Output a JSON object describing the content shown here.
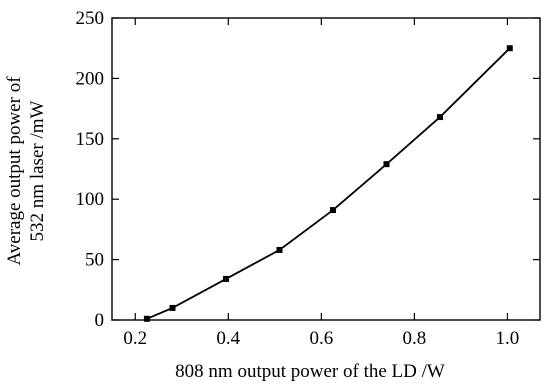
{
  "chart_data": {
    "type": "line",
    "title": "",
    "xlabel": "808 nm output power of the LD /W",
    "ylabel_lines": [
      "Average output power of",
      "532 nm laser /mW"
    ],
    "xlim": [
      0.15,
      1.07
    ],
    "ylim": [
      0,
      250
    ],
    "xticks": [
      0.2,
      0.4,
      0.6,
      0.8,
      1.0
    ],
    "xtick_labels": [
      "0.2",
      "0.4",
      "0.6",
      "0.8",
      "1.0"
    ],
    "yticks": [
      0,
      50,
      100,
      150,
      200,
      250
    ],
    "ytick_labels": [
      "0",
      "50",
      "100",
      "150",
      "200",
      "250"
    ],
    "grid": false,
    "legend": "none",
    "series": [
      {
        "marker": "square",
        "x": [
          0.225,
          0.28,
          0.395,
          0.51,
          0.625,
          0.74,
          0.855,
          1.005
        ],
        "y": [
          1,
          10,
          34,
          58,
          91,
          129,
          168,
          225
        ]
      }
    ]
  }
}
